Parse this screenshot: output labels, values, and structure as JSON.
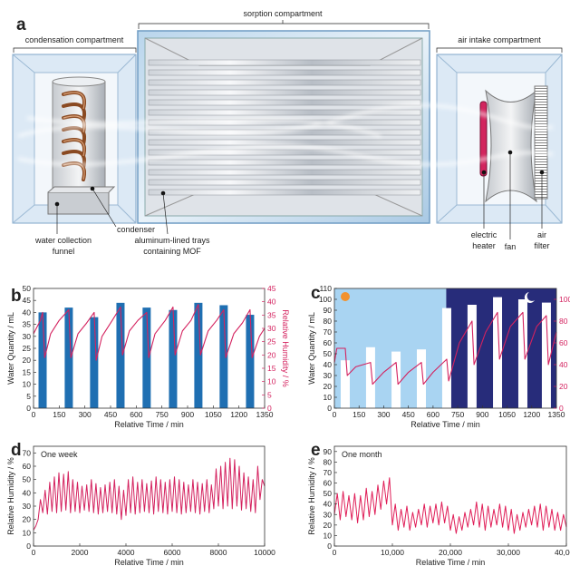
{
  "diagram": {
    "panel_label": "a",
    "compartments": [
      "condensation compartment",
      "sorption compartment",
      "air intake compartment"
    ],
    "labels": [
      {
        "lines": [
          "condenser"
        ]
      },
      {
        "lines": [
          "water collection",
          "funnel"
        ]
      },
      {
        "lines": [
          "aluminum-lined trays",
          "containing MOF"
        ]
      },
      {
        "lines": [
          "electric",
          "heater"
        ]
      },
      {
        "lines": [
          "fan"
        ]
      },
      {
        "lines": [
          "air",
          "filter"
        ]
      }
    ]
  },
  "chart_data": [
    {
      "type": "bar",
      "panel_label": "b",
      "xlabel": "Relative Time / min",
      "ylabel": "Water Quantity / mL",
      "y2label": "Relative Humidity / %",
      "xlim": [
        0,
        1350
      ],
      "xticks": [
        0,
        150,
        300,
        450,
        600,
        750,
        900,
        1050,
        1200,
        1350
      ],
      "ylim": [
        0,
        50
      ],
      "yticks": [
        0,
        5,
        10,
        15,
        20,
        25,
        30,
        35,
        40,
        45,
        50
      ],
      "y2lim": [
        0,
        45
      ],
      "y2ticks": [
        0,
        5,
        10,
        15,
        20,
        25,
        30,
        35,
        40,
        45
      ],
      "y2color": "#d4225f",
      "series": [
        {
          "type": "bar",
          "color": "#1f6fb2",
          "x": [
            53,
            206,
            354,
            508,
            661,
            815,
            963,
            1111,
            1265
          ],
          "values": [
            40,
            42,
            38,
            44,
            42,
            41,
            44,
            43,
            39
          ]
        },
        {
          "type": "line",
          "axis": "y2",
          "color": "#d4225f",
          "x": [
            0,
            40,
            53,
            65,
            100,
            150,
            206,
            218,
            260,
            310,
            354,
            366,
            400,
            460,
            508,
            520,
            560,
            610,
            661,
            673,
            710,
            770,
            815,
            827,
            870,
            920,
            963,
            975,
            1020,
            1070,
            1111,
            1123,
            1170,
            1220,
            1265,
            1277,
            1320,
            1350
          ],
          "values": [
            28,
            33,
            36,
            19,
            28,
            33,
            37,
            19,
            28,
            32,
            36,
            18,
            27,
            33,
            38,
            20,
            29,
            33,
            36,
            19,
            28,
            33,
            38,
            20,
            29,
            33,
            39,
            20,
            29,
            33,
            37,
            19,
            28,
            32,
            37,
            19,
            27,
            30
          ]
        }
      ]
    },
    {
      "type": "bar",
      "panel_label": "c",
      "xlabel": "Relative Time / min",
      "ylabel": "Water Quantity / mL",
      "xlim": [
        0,
        1350
      ],
      "xticks": [
        0,
        150,
        300,
        450,
        600,
        750,
        900,
        1050,
        1200,
        1350
      ],
      "ylim": [
        0,
        110
      ],
      "yticks": [
        0,
        10,
        20,
        30,
        40,
        50,
        60,
        70,
        80,
        90,
        100,
        110
      ],
      "y2lim": [
        0,
        110
      ],
      "y2ticks": [
        0,
        20,
        40,
        60,
        80,
        100
      ],
      "y2color": "#d4225f",
      "regions": [
        {
          "xlim": [
            0,
            680
          ],
          "color": "#a9d4f2"
        },
        {
          "xlim": [
            680,
            1350
          ],
          "color": "#272c7a"
        }
      ],
      "series": [
        {
          "type": "bar",
          "color": "#ffffff",
          "x": [
            66,
            220,
            375,
            529,
            683,
            837,
            992,
            1146,
            1289
          ],
          "values": [
            44,
            56,
            52,
            54,
            92,
            95,
            102,
            100,
            97
          ]
        },
        {
          "type": "line",
          "axis": "y2",
          "color": "#d4225f",
          "x": [
            0,
            15,
            66,
            78,
            130,
            220,
            232,
            300,
            375,
            387,
            450,
            529,
            541,
            600,
            683,
            695,
            760,
            837,
            849,
            920,
            992,
            1004,
            1070,
            1146,
            1158,
            1230,
            1289,
            1301,
            1350
          ],
          "values": [
            42,
            55,
            55,
            30,
            38,
            42,
            22,
            33,
            42,
            22,
            33,
            42,
            22,
            33,
            45,
            25,
            60,
            80,
            40,
            70,
            88,
            45,
            75,
            88,
            45,
            75,
            85,
            40,
            70
          ]
        }
      ]
    },
    {
      "type": "line",
      "panel_label": "d",
      "annotation": "One week",
      "xlabel": "Relative Time / min",
      "ylabel": "Relative Humidity / %",
      "xlim": [
        0,
        10000
      ],
      "xticks": [
        0,
        2000,
        4000,
        6000,
        8000,
        10000
      ],
      "ylim": [
        0,
        75
      ],
      "yticks": [
        0,
        10,
        20,
        30,
        40,
        50,
        60,
        70
      ],
      "series": [
        {
          "type": "line",
          "color": "#d4225f",
          "x": [
            0,
            100,
            200,
            300,
            400,
            500,
            600,
            700,
            800,
            900,
            1000,
            1100,
            1200,
            1300,
            1400,
            1500,
            1600,
            1700,
            1800,
            1900,
            2000,
            2100,
            2200,
            2300,
            2400,
            2500,
            2600,
            2700,
            2800,
            2900,
            3000,
            3100,
            3200,
            3300,
            3400,
            3500,
            3600,
            3700,
            3800,
            3900,
            4000,
            4100,
            4200,
            4300,
            4400,
            4500,
            4600,
            4700,
            4800,
            4900,
            5000,
            5100,
            5200,
            5300,
            5400,
            5500,
            5600,
            5700,
            5800,
            5900,
            6000,
            6100,
            6200,
            6300,
            6400,
            6500,
            6600,
            6700,
            6800,
            6900,
            7000,
            7100,
            7200,
            7300,
            7400,
            7500,
            7600,
            7700,
            7800,
            7900,
            8000,
            8100,
            8200,
            8300,
            8400,
            8500,
            8600,
            8700,
            8800,
            8900,
            9000,
            9100,
            9200,
            9300,
            9400,
            9500,
            9600,
            9700,
            9800,
            9900,
            10000
          ],
          "values": [
            12,
            15,
            20,
            35,
            25,
            42,
            24,
            48,
            26,
            52,
            25,
            55,
            26,
            54,
            27,
            56,
            25,
            50,
            26,
            48,
            25,
            45,
            27,
            46,
            26,
            50,
            25,
            47,
            24,
            44,
            25,
            46,
            26,
            48,
            25,
            50,
            24,
            45,
            20,
            42,
            23,
            50,
            25,
            52,
            24,
            48,
            25,
            50,
            26,
            47,
            25,
            49,
            24,
            52,
            26,
            50,
            25,
            48,
            24,
            50,
            26,
            52,
            25,
            50,
            24,
            48,
            25,
            46,
            26,
            50,
            25,
            48,
            24,
            47,
            26,
            50,
            25,
            46,
            28,
            58,
            30,
            60,
            28,
            63,
            30,
            66,
            28,
            65,
            30,
            60,
            27,
            55,
            28,
            52,
            26,
            50,
            25,
            60,
            35,
            50,
            45
          ]
        }
      ]
    },
    {
      "type": "line",
      "panel_label": "e",
      "annotation": "One month",
      "xlabel": "Relative Time / min",
      "ylabel": "Relative Humidity / %",
      "xlim": [
        0,
        40000
      ],
      "xticks": [
        0,
        {
          "value": 10000,
          "label": "10,000"
        },
        {
          "value": 20000,
          "label": "20,000"
        },
        {
          "value": 30000,
          "label": "30,000"
        },
        {
          "value": 40000,
          "label": "40,000"
        }
      ],
      "ylim": [
        0,
        95
      ],
      "yticks": [
        0,
        10,
        20,
        30,
        40,
        50,
        60,
        70,
        80,
        90
      ],
      "series": [
        {
          "type": "line",
          "color": "#e01e58",
          "x": [
            0,
            500,
            1000,
            1500,
            2000,
            2500,
            3000,
            3500,
            4000,
            4500,
            5000,
            5500,
            6000,
            6500,
            7000,
            7500,
            8000,
            8500,
            9000,
            9500,
            10000,
            10500,
            11000,
            11500,
            12000,
            12500,
            13000,
            13500,
            14000,
            14500,
            15000,
            15500,
            16000,
            16500,
            17000,
            17500,
            18000,
            18500,
            19000,
            19500,
            20000,
            20500,
            21000,
            21500,
            22000,
            22500,
            23000,
            23500,
            24000,
            24500,
            25000,
            25500,
            26000,
            26500,
            27000,
            27500,
            28000,
            28500,
            29000,
            29500,
            30000,
            30500,
            31000,
            31500,
            32000,
            32500,
            33000,
            33500,
            34000,
            34500,
            35000,
            35500,
            36000,
            36500,
            37000,
            37500,
            38000,
            38500,
            39000,
            39500,
            40000
          ],
          "values": [
            30,
            50,
            25,
            52,
            28,
            48,
            25,
            50,
            22,
            48,
            25,
            55,
            28,
            52,
            30,
            58,
            35,
            62,
            40,
            65,
            20,
            40,
            15,
            35,
            18,
            38,
            15,
            32,
            18,
            35,
            20,
            40,
            18,
            38,
            22,
            40,
            20,
            42,
            22,
            38,
            15,
            30,
            12,
            28,
            15,
            32,
            18,
            35,
            20,
            42,
            18,
            40,
            15,
            38,
            18,
            35,
            20,
            40,
            18,
            38,
            15,
            35,
            12,
            30,
            15,
            32,
            18,
            35,
            20,
            38,
            18,
            40,
            15,
            38,
            18,
            35,
            15,
            32,
            15,
            30,
            18
          ]
        }
      ]
    }
  ]
}
